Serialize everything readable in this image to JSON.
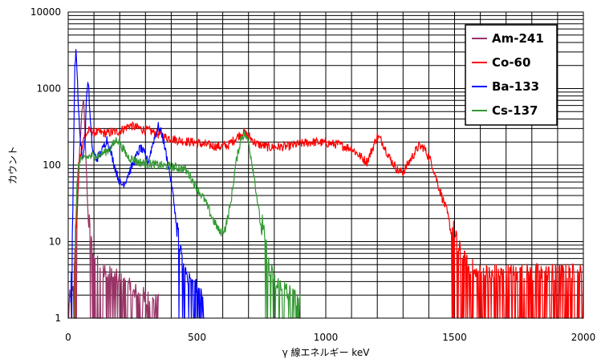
{
  "chart_data": {
    "type": "line",
    "title": "",
    "xlabel": "γ 線エネルギー keV",
    "ylabel": "カウント",
    "xlim": [
      0,
      2000
    ],
    "ylim": [
      1,
      10000
    ],
    "y_scale": "log",
    "x_ticks": [
      0,
      500,
      1000,
      1500,
      2000
    ],
    "x_tick_labels": [
      "0",
      "500",
      "1000",
      "1500",
      "2000"
    ],
    "y_ticks": [
      1,
      10,
      100,
      1000,
      10000
    ],
    "y_tick_labels": [
      "1",
      "10",
      "100",
      "1000",
      "10000"
    ],
    "grid": true,
    "legend_position": "top-right",
    "series": [
      {
        "name": "Am-241",
        "color": "#993366",
        "points": [
          [
            0,
            1
          ],
          [
            20,
            1.5
          ],
          [
            35,
            20
          ],
          [
            45,
            180
          ],
          [
            52,
            400
          ],
          [
            58,
            700
          ],
          [
            62,
            550
          ],
          [
            68,
            150
          ],
          [
            75,
            30
          ],
          [
            85,
            8
          ],
          [
            100,
            4
          ],
          [
            120,
            3
          ],
          [
            150,
            2.5
          ],
          [
            200,
            2
          ],
          [
            250,
            1.5
          ],
          [
            300,
            1.2
          ],
          [
            350,
            1
          ]
        ]
      },
      {
        "name": "Co-60",
        "color": "#ff0000",
        "points": [
          [
            20,
            1
          ],
          [
            40,
            100
          ],
          [
            60,
            230
          ],
          [
            80,
            280
          ],
          [
            100,
            270
          ],
          [
            150,
            260
          ],
          [
            200,
            280
          ],
          [
            240,
            330
          ],
          [
            280,
            300
          ],
          [
            330,
            270
          ],
          [
            380,
            230
          ],
          [
            430,
            210
          ],
          [
            480,
            200
          ],
          [
            530,
            185
          ],
          [
            580,
            175
          ],
          [
            620,
            180
          ],
          [
            660,
            240
          ],
          [
            680,
            270
          ],
          [
            700,
            240
          ],
          [
            730,
            190
          ],
          [
            780,
            170
          ],
          [
            850,
            175
          ],
          [
            900,
            190
          ],
          [
            950,
            200
          ],
          [
            1000,
            195
          ],
          [
            1050,
            185
          ],
          [
            1100,
            165
          ],
          [
            1140,
            125
          ],
          [
            1160,
            110
          ],
          [
            1180,
            160
          ],
          [
            1200,
            240
          ],
          [
            1220,
            200
          ],
          [
            1250,
            120
          ],
          [
            1280,
            85
          ],
          [
            1300,
            80
          ],
          [
            1330,
            120
          ],
          [
            1360,
            175
          ],
          [
            1380,
            170
          ],
          [
            1410,
            110
          ],
          [
            1440,
            50
          ],
          [
            1470,
            25
          ],
          [
            1500,
            8
          ],
          [
            1530,
            4
          ],
          [
            1560,
            3
          ],
          [
            1600,
            2.5
          ],
          [
            1700,
            2.5
          ],
          [
            1800,
            2.5
          ],
          [
            1900,
            2.5
          ],
          [
            2000,
            2.5
          ]
        ]
      },
      {
        "name": "Ba-133",
        "color": "#0000ff",
        "points": [
          [
            10,
            1
          ],
          [
            18,
            30
          ],
          [
            25,
            1500
          ],
          [
            30,
            3500
          ],
          [
            36,
            1200
          ],
          [
            45,
            250
          ],
          [
            55,
            120
          ],
          [
            65,
            200
          ],
          [
            72,
            900
          ],
          [
            78,
            1300
          ],
          [
            85,
            400
          ],
          [
            95,
            150
          ],
          [
            110,
            120
          ],
          [
            130,
            150
          ],
          [
            150,
            220
          ],
          [
            170,
            130
          ],
          [
            190,
            75
          ],
          [
            205,
            55
          ],
          [
            220,
            60
          ],
          [
            240,
            85
          ],
          [
            260,
            120
          ],
          [
            280,
            170
          ],
          [
            295,
            140
          ],
          [
            310,
            110
          ],
          [
            330,
            200
          ],
          [
            350,
            320
          ],
          [
            365,
            250
          ],
          [
            380,
            140
          ],
          [
            400,
            60
          ],
          [
            415,
            25
          ],
          [
            425,
            10
          ],
          [
            435,
            5
          ],
          [
            450,
            3
          ],
          [
            470,
            2
          ],
          [
            500,
            1.5
          ],
          [
            530,
            1
          ]
        ]
      },
      {
        "name": "Cs-137",
        "color": "#339933",
        "points": [
          [
            20,
            1
          ],
          [
            35,
            70
          ],
          [
            45,
            120
          ],
          [
            60,
            120
          ],
          [
            80,
            130
          ],
          [
            120,
            135
          ],
          [
            160,
            160
          ],
          [
            190,
            220
          ],
          [
            210,
            170
          ],
          [
            230,
            130
          ],
          [
            270,
            110
          ],
          [
            300,
            105
          ],
          [
            350,
            100
          ],
          [
            400,
            95
          ],
          [
            450,
            90
          ],
          [
            470,
            75
          ],
          [
            500,
            50
          ],
          [
            530,
            35
          ],
          [
            560,
            20
          ],
          [
            590,
            13
          ],
          [
            610,
            15
          ],
          [
            630,
            30
          ],
          [
            650,
            100
          ],
          [
            670,
            220
          ],
          [
            685,
            260
          ],
          [
            700,
            200
          ],
          [
            720,
            80
          ],
          [
            740,
            25
          ],
          [
            760,
            8
          ],
          [
            780,
            3
          ],
          [
            800,
            2
          ],
          [
            850,
            1.5
          ],
          [
            900,
            1
          ]
        ]
      }
    ]
  }
}
